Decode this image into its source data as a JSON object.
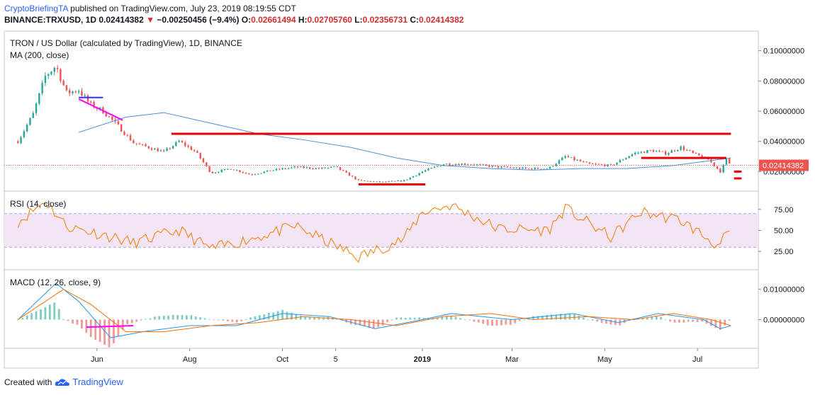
{
  "header": {
    "author": "CryptoBriefingTA",
    "published": "published on TradingView.com, July 23, 2019 08:19:55 CDT",
    "symbol_line": "BINANCE:TRXUSD, 1D",
    "last": "0.02414382",
    "change": "−0.00250456 (−9.4%)",
    "o_label": "O:",
    "o": "0.02661494",
    "h_label": "H:",
    "h": "0.02705760",
    "l_label": "L:",
    "l": "0.02356731",
    "c_label": "C:",
    "c": "0.02414382"
  },
  "panes": {
    "price_title": "TRON / US Dollar (calculated by TradingView), 1D, BINANCE",
    "ma_title": "MA (200, close)",
    "rsi_title": "RSI (14, close)",
    "macd_title": "MACD (12, 26, close, 9)"
  },
  "last_price_badge": "0.02414382",
  "footer": {
    "created_with": "Created with",
    "brand": "TradingView"
  },
  "colors": {
    "up": "#26a69a",
    "down": "#ef5350",
    "ma": "#4a90d9",
    "rsi": "#f57c00",
    "rsi_band": "#f3e5f5",
    "macd": "#2196f3",
    "signal": "#ff6d00",
    "level": "#e60000"
  },
  "chart_data": [
    {
      "type": "candlestick",
      "title": "TRON / US Dollar (calculated by TradingView), 1D, BINANCE",
      "x_tick_labels": [
        "Jun",
        "Aug",
        "Oct",
        "5",
        "2019",
        "Mar",
        "May",
        "Jul"
      ],
      "y_tick_labels": [
        "0.10000000",
        "0.08000000",
        "0.06000000",
        "0.04000000",
        "0.02000000"
      ],
      "ylim": [
        0.008,
        0.112
      ],
      "close_series": [
        {
          "x": "2018-04-10",
          "y": 0.04
        },
        {
          "x": "2018-04-20",
          "y": 0.058
        },
        {
          "x": "2018-04-28",
          "y": 0.083
        },
        {
          "x": "2018-05-05",
          "y": 0.09
        },
        {
          "x": "2018-05-12",
          "y": 0.072
        },
        {
          "x": "2018-05-20",
          "y": 0.074
        },
        {
          "x": "2018-05-27",
          "y": 0.065
        },
        {
          "x": "2018-06-05",
          "y": 0.06
        },
        {
          "x": "2018-06-15",
          "y": 0.05
        },
        {
          "x": "2018-06-25",
          "y": 0.039
        },
        {
          "x": "2018-07-05",
          "y": 0.036
        },
        {
          "x": "2018-07-15",
          "y": 0.033
        },
        {
          "x": "2018-07-25",
          "y": 0.04
        },
        {
          "x": "2018-08-05",
          "y": 0.033
        },
        {
          "x": "2018-08-15",
          "y": 0.019
        },
        {
          "x": "2018-08-28",
          "y": 0.022
        },
        {
          "x": "2018-09-10",
          "y": 0.018
        },
        {
          "x": "2018-09-25",
          "y": 0.021
        },
        {
          "x": "2018-10-10",
          "y": 0.023
        },
        {
          "x": "2018-10-25",
          "y": 0.022
        },
        {
          "x": "2018-11-05",
          "y": 0.023
        },
        {
          "x": "2018-11-20",
          "y": 0.014
        },
        {
          "x": "2018-12-05",
          "y": 0.013
        },
        {
          "x": "2018-12-20",
          "y": 0.014
        },
        {
          "x": "2019-01-01",
          "y": 0.02
        },
        {
          "x": "2019-01-15",
          "y": 0.025
        },
        {
          "x": "2019-02-01",
          "y": 0.025
        },
        {
          "x": "2019-02-20",
          "y": 0.023
        },
        {
          "x": "2019-03-10",
          "y": 0.022
        },
        {
          "x": "2019-03-25",
          "y": 0.022
        },
        {
          "x": "2019-04-05",
          "y": 0.03
        },
        {
          "x": "2019-04-20",
          "y": 0.025
        },
        {
          "x": "2019-05-05",
          "y": 0.024
        },
        {
          "x": "2019-05-20",
          "y": 0.032
        },
        {
          "x": "2019-06-01",
          "y": 0.034
        },
        {
          "x": "2019-06-10",
          "y": 0.032
        },
        {
          "x": "2019-06-20",
          "y": 0.036
        },
        {
          "x": "2019-06-28",
          "y": 0.032
        },
        {
          "x": "2019-07-08",
          "y": 0.028
        },
        {
          "x": "2019-07-16",
          "y": 0.02
        },
        {
          "x": "2019-07-20",
          "y": 0.028
        },
        {
          "x": "2019-07-23",
          "y": 0.02414382
        }
      ],
      "ma200": [
        {
          "x": "2018-05-20",
          "y": 0.046
        },
        {
          "x": "2018-06-20",
          "y": 0.056
        },
        {
          "x": "2018-07-15",
          "y": 0.059
        },
        {
          "x": "2018-08-15",
          "y": 0.052
        },
        {
          "x": "2018-09-15",
          "y": 0.045
        },
        {
          "x": "2018-10-15",
          "y": 0.041
        },
        {
          "x": "2018-11-15",
          "y": 0.036
        },
        {
          "x": "2018-12-15",
          "y": 0.029
        },
        {
          "x": "2019-01-15",
          "y": 0.024
        },
        {
          "x": "2019-02-15",
          "y": 0.022
        },
        {
          "x": "2019-03-15",
          "y": 0.021
        },
        {
          "x": "2019-04-15",
          "y": 0.022
        },
        {
          "x": "2019-05-15",
          "y": 0.022
        },
        {
          "x": "2019-06-15",
          "y": 0.024
        },
        {
          "x": "2019-07-23",
          "y": 0.029
        }
      ],
      "drawn_levels": [
        {
          "from": "2018-07-20",
          "to": "2019-07-23",
          "y": 0.045
        },
        {
          "from": "2018-11-20",
          "to": "2019-01-03",
          "y": 0.0115
        },
        {
          "from": "2019-05-25",
          "to": "2019-07-20",
          "y": 0.029
        },
        {
          "from": "2019-07-25",
          "to": "2019-07-30",
          "y": 0.02
        },
        {
          "from": "2019-07-25",
          "to": "2019-07-30",
          "y": 0.0155
        }
      ],
      "last_price": 0.02414382
    },
    {
      "type": "line",
      "title": "RSI (14, close)",
      "y_tick_labels": [
        "75.00",
        "50.00",
        "25.00"
      ],
      "ylim": [
        5,
        95
      ],
      "band": [
        30,
        70
      ],
      "series": [
        {
          "x": "2018-04-10",
          "y": 60
        },
        {
          "x": "2018-04-28",
          "y": 85
        },
        {
          "x": "2018-05-12",
          "y": 55
        },
        {
          "x": "2018-06-05",
          "y": 45
        },
        {
          "x": "2018-06-25",
          "y": 35
        },
        {
          "x": "2018-07-25",
          "y": 50
        },
        {
          "x": "2018-08-15",
          "y": 28
        },
        {
          "x": "2018-09-10",
          "y": 40
        },
        {
          "x": "2018-10-10",
          "y": 55
        },
        {
          "x": "2018-11-20",
          "y": 18
        },
        {
          "x": "2018-12-20",
          "y": 40
        },
        {
          "x": "2019-01-01",
          "y": 72
        },
        {
          "x": "2019-01-20",
          "y": 80
        },
        {
          "x": "2019-02-20",
          "y": 52
        },
        {
          "x": "2019-03-25",
          "y": 50
        },
        {
          "x": "2019-04-05",
          "y": 76
        },
        {
          "x": "2019-05-05",
          "y": 42
        },
        {
          "x": "2019-05-25",
          "y": 72
        },
        {
          "x": "2019-06-20",
          "y": 62
        },
        {
          "x": "2019-07-16",
          "y": 30
        },
        {
          "x": "2019-07-20",
          "y": 48
        },
        {
          "x": "2019-07-23",
          "y": 40
        }
      ]
    },
    {
      "type": "line",
      "title": "MACD (12, 26, close, 9)",
      "y_tick_labels": [
        "0.01000000",
        "0.00000000"
      ],
      "ylim": [
        -0.009,
        0.016
      ],
      "series": [
        {
          "name": "MACD",
          "points": [
            {
              "x": "2018-04-10",
              "y": 0.0
            },
            {
              "x": "2018-05-05",
              "y": 0.012
            },
            {
              "x": "2018-05-20",
              "y": 0.006
            },
            {
              "x": "2018-06-10",
              "y": -0.006
            },
            {
              "x": "2018-07-01",
              "y": -0.004
            },
            {
              "x": "2018-08-01",
              "y": -0.002
            },
            {
              "x": "2018-09-01",
              "y": -0.002
            },
            {
              "x": "2018-10-01",
              "y": 0.002
            },
            {
              "x": "2018-11-01",
              "y": 0.001
            },
            {
              "x": "2018-12-01",
              "y": -0.003
            },
            {
              "x": "2019-01-01",
              "y": 0.0
            },
            {
              "x": "2019-01-20",
              "y": 0.002
            },
            {
              "x": "2019-03-01",
              "y": 0.0
            },
            {
              "x": "2019-04-10",
              "y": 0.002
            },
            {
              "x": "2019-05-10",
              "y": -0.001
            },
            {
              "x": "2019-06-05",
              "y": 0.002
            },
            {
              "x": "2019-07-05",
              "y": 0.0
            },
            {
              "x": "2019-07-16",
              "y": -0.003
            },
            {
              "x": "2019-07-23",
              "y": -0.002
            }
          ]
        },
        {
          "name": "Signal",
          "points": [
            {
              "x": "2018-04-10",
              "y": 0.0
            },
            {
              "x": "2018-05-10",
              "y": 0.01
            },
            {
              "x": "2018-05-28",
              "y": 0.005
            },
            {
              "x": "2018-06-20",
              "y": -0.004
            },
            {
              "x": "2018-07-15",
              "y": -0.004
            },
            {
              "x": "2018-08-15",
              "y": -0.002
            },
            {
              "x": "2018-09-15",
              "y": -0.001
            },
            {
              "x": "2018-10-15",
              "y": 0.001
            },
            {
              "x": "2018-11-15",
              "y": 0.0
            },
            {
              "x": "2018-12-15",
              "y": -0.002
            },
            {
              "x": "2019-01-15",
              "y": 0.001
            },
            {
              "x": "2019-02-15",
              "y": 0.002
            },
            {
              "x": "2019-03-15",
              "y": 0.0
            },
            {
              "x": "2019-04-20",
              "y": 0.001
            },
            {
              "x": "2019-05-20",
              "y": 0.0
            },
            {
              "x": "2019-06-15",
              "y": 0.002
            },
            {
              "x": "2019-07-10",
              "y": 0.0
            },
            {
              "x": "2019-07-23",
              "y": -0.002
            }
          ]
        }
      ]
    }
  ]
}
